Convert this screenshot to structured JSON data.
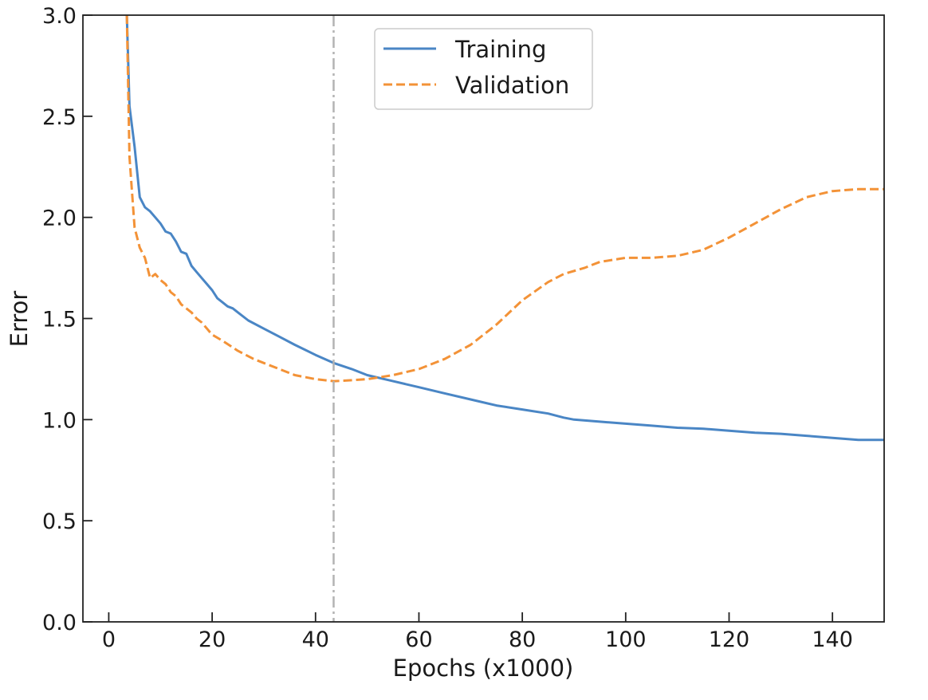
{
  "chart_data": {
    "type": "line",
    "title": "",
    "xlabel": "Epochs (x1000)",
    "ylabel": "Error",
    "xlim": [
      -5,
      150
    ],
    "ylim": [
      0,
      3.0
    ],
    "xticks": [
      0,
      20,
      40,
      60,
      80,
      100,
      120,
      140
    ],
    "yticks": [
      0.0,
      0.5,
      1.0,
      1.5,
      2.0,
      2.5,
      3.0
    ],
    "xtick_labels": [
      "0",
      "20",
      "40",
      "60",
      "80",
      "100",
      "120",
      "140"
    ],
    "ytick_labels": [
      "0.0",
      "0.5",
      "1.0",
      "1.5",
      "2.0",
      "2.5",
      "3.0"
    ],
    "grid": false,
    "legend_position": "upper-center",
    "vline": {
      "x": 43.5,
      "color": "#b3b3b3",
      "style": "dash-dot"
    },
    "series": [
      {
        "name": "Training",
        "color": "#4a86c5",
        "style": "solid",
        "x": [
          3.5,
          4,
          5,
          6,
          7,
          8,
          9,
          10,
          11,
          12,
          13,
          14,
          15,
          16,
          17,
          18,
          19,
          20,
          21,
          22,
          23,
          24,
          25,
          27,
          30,
          33,
          36,
          40,
          43.5,
          47,
          50,
          55,
          60,
          65,
          70,
          75,
          80,
          85,
          88,
          90,
          95,
          100,
          105,
          110,
          115,
          120,
          125,
          130,
          135,
          140,
          145,
          150
        ],
        "y": [
          3.0,
          2.55,
          2.35,
          2.1,
          2.05,
          2.03,
          2.0,
          1.97,
          1.93,
          1.92,
          1.88,
          1.83,
          1.82,
          1.76,
          1.73,
          1.7,
          1.67,
          1.64,
          1.6,
          1.58,
          1.56,
          1.55,
          1.53,
          1.49,
          1.45,
          1.41,
          1.37,
          1.32,
          1.28,
          1.25,
          1.22,
          1.19,
          1.16,
          1.13,
          1.1,
          1.07,
          1.05,
          1.03,
          1.01,
          1.0,
          0.99,
          0.98,
          0.97,
          0.96,
          0.955,
          0.945,
          0.935,
          0.93,
          0.92,
          0.91,
          0.9,
          0.9
        ]
      },
      {
        "name": "Validation",
        "color": "#f39237",
        "style": "dashed",
        "x": [
          3.5,
          4,
          5,
          6,
          7,
          8,
          9,
          10,
          11,
          12,
          13,
          14,
          15,
          16,
          17,
          18,
          19,
          20,
          22,
          25,
          28,
          30,
          33,
          36,
          40,
          43.5,
          47,
          50,
          55,
          60,
          65,
          70,
          75,
          80,
          85,
          88,
          92,
          95,
          100,
          105,
          110,
          115,
          120,
          125,
          130,
          135,
          140,
          145,
          150
        ],
        "y": [
          3.0,
          2.3,
          1.95,
          1.85,
          1.8,
          1.7,
          1.72,
          1.69,
          1.67,
          1.63,
          1.61,
          1.57,
          1.55,
          1.53,
          1.5,
          1.48,
          1.45,
          1.42,
          1.39,
          1.34,
          1.3,
          1.28,
          1.25,
          1.22,
          1.2,
          1.19,
          1.195,
          1.2,
          1.22,
          1.25,
          1.3,
          1.37,
          1.47,
          1.59,
          1.68,
          1.72,
          1.75,
          1.78,
          1.8,
          1.8,
          1.81,
          1.84,
          1.9,
          1.97,
          2.04,
          2.1,
          2.13,
          2.14,
          2.14
        ]
      }
    ]
  }
}
